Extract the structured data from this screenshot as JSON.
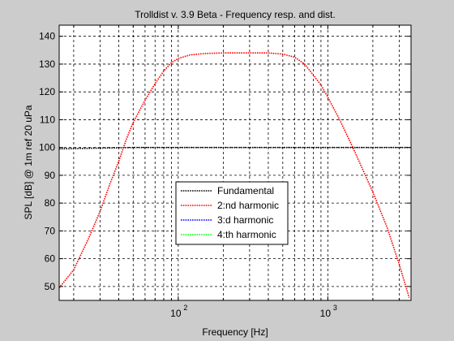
{
  "window": {
    "background": "#cccccc"
  },
  "chart_data": {
    "type": "line",
    "title": "Trolldist v. 3.9 Beta - Frequency resp. and dist.",
    "xlabel": "Frequency [Hz]",
    "ylabel": "SPL [dB] @ 1m ref 20 uPa",
    "x_scale": "log",
    "xlim": [
      16,
      3600
    ],
    "ylim": [
      45,
      144
    ],
    "x_ticks": [
      100,
      1000
    ],
    "x_tick_labels": [
      {
        "base": "10",
        "exp": "2"
      },
      {
        "base": "10",
        "exp": "3"
      }
    ],
    "y_ticks": [
      50,
      60,
      70,
      80,
      90,
      100,
      110,
      120,
      130,
      140
    ],
    "y_tick_labels": [
      "50",
      "60",
      "70",
      "80",
      "90",
      "100",
      "110",
      "120",
      "130",
      "140"
    ],
    "grid": true,
    "grid_style": "dashed",
    "legend_position": "lower-center",
    "series": [
      {
        "name": "Fundamental",
        "color": "#000000",
        "style": "dotted",
        "x": [
          16,
          20,
          30,
          50,
          100,
          200,
          500,
          1000,
          2000,
          3500
        ],
        "y": [
          99.5,
          99.6,
          99.8,
          100,
          100,
          100,
          100,
          100,
          100,
          100
        ]
      },
      {
        "name": "2:nd harmonic",
        "color": "#ff0000",
        "style": "dotted",
        "x": [
          16,
          20,
          25,
          30,
          35,
          40,
          45,
          50,
          60,
          70,
          80,
          90,
          100,
          120,
          150,
          200,
          300,
          400,
          500,
          600,
          700,
          800,
          900,
          1000,
          1200,
          1500,
          2000,
          2500,
          3000,
          3500
        ],
        "y": [
          49.5,
          56,
          67,
          77,
          87,
          95,
          103,
          109,
          117,
          123,
          127.5,
          130.5,
          132,
          133.3,
          133.8,
          134,
          134,
          134,
          133.6,
          132.5,
          130,
          126,
          122.5,
          118,
          110,
          99,
          84,
          71,
          58,
          46
        ]
      },
      {
        "name": "3:d harmonic",
        "color": "#0000ff",
        "style": "dotted",
        "x": [],
        "y": []
      },
      {
        "name": "4:th harmonic",
        "color": "#00ff00",
        "style": "dotted",
        "x": [],
        "y": []
      }
    ]
  }
}
